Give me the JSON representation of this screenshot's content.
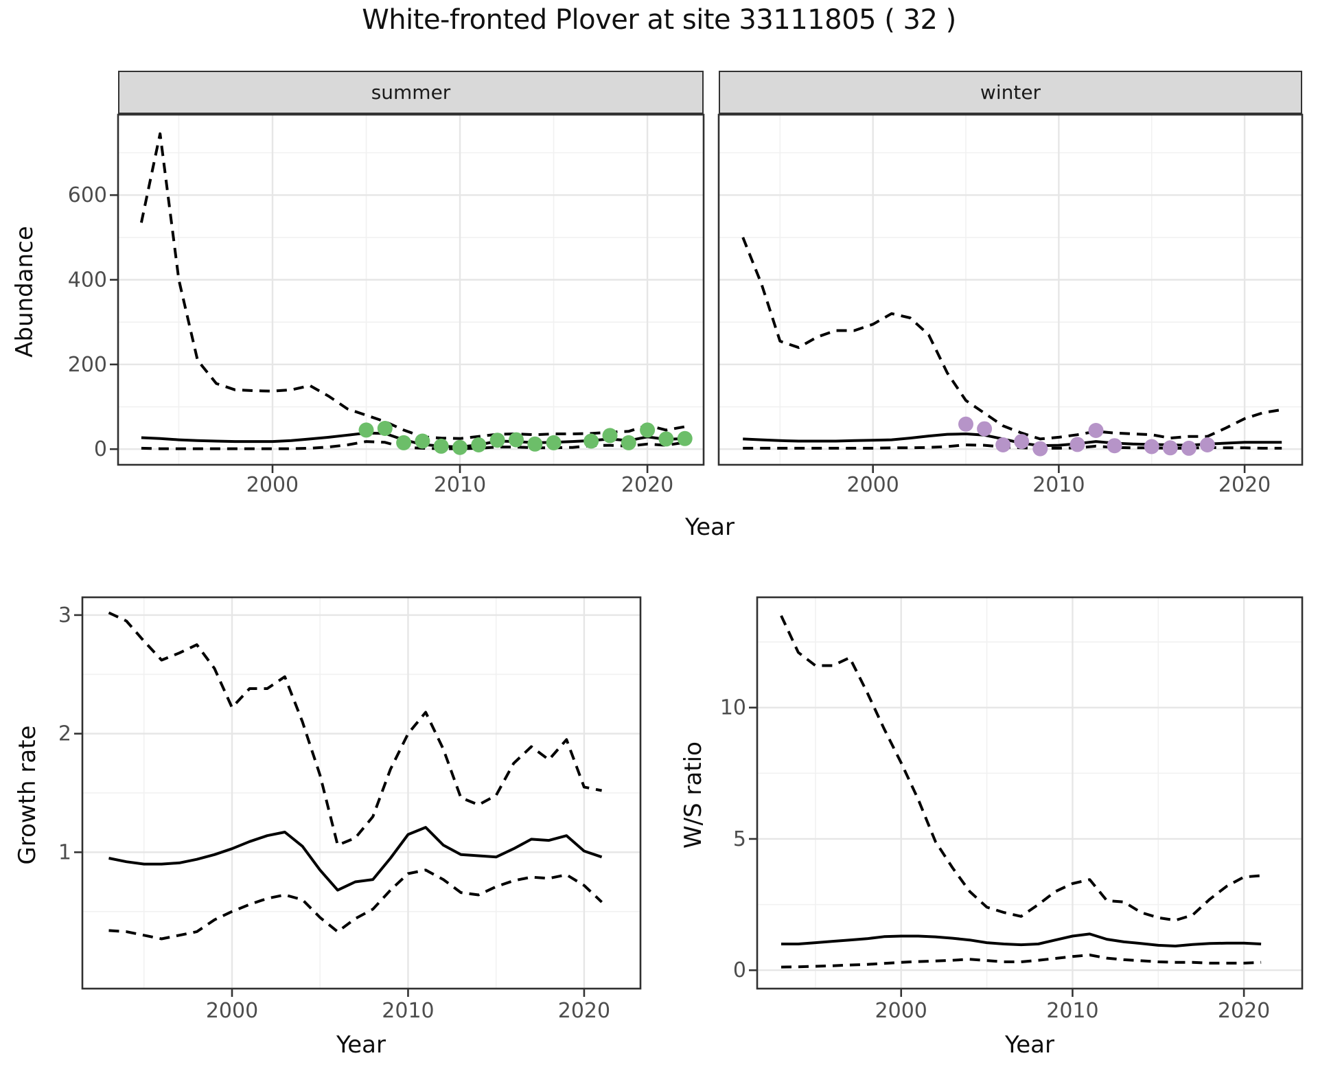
{
  "title": "White-fronted Plover at site 33111805 ( 32 )",
  "colors": {
    "summer_point": "#6cbe69",
    "winter_point": "#b694c8",
    "line": "#000000",
    "grid_major": "#e6e6e6",
    "grid_minor": "#f1f1f1",
    "panel_border": "#303030",
    "strip_bg": "#d9d9d9",
    "axis_text": "#4d4d4d"
  },
  "chart_data": [
    {
      "type": "line",
      "id": "summer-abundance",
      "facet_label": "summer",
      "xlabel": "Year",
      "ylabel": "Abundance",
      "xlim": [
        1991.76,
        2023.0
      ],
      "ylim": [
        -37,
        790
      ],
      "x_ticks": [
        2000,
        2010,
        2020
      ],
      "x_tick_labels": [
        "2000",
        "2010",
        "2020"
      ],
      "x_minor": [
        1995,
        2005,
        2015
      ],
      "y_ticks": [
        0,
        200,
        400,
        600
      ],
      "y_tick_labels": [
        "0",
        "200",
        "400",
        "600"
      ],
      "y_minor": [
        100,
        300,
        500,
        700
      ],
      "grid": true,
      "x": [
        1993,
        1994,
        1995,
        1996,
        1997,
        1998,
        1999,
        2000,
        2001,
        2002,
        2003,
        2004,
        2005,
        2006,
        2007,
        2008,
        2009,
        2010,
        2011,
        2012,
        2013,
        2014,
        2015,
        2016,
        2017,
        2018,
        2019,
        2020,
        2021,
        2022
      ],
      "series": [
        {
          "name": "upper 95% CI",
          "style": "dashed",
          "y": [
            535,
            745,
            400,
            210,
            155,
            140,
            138,
            137,
            140,
            150,
            125,
            95,
            80,
            65,
            45,
            29,
            26,
            25,
            30,
            35,
            36,
            34,
            36,
            36,
            37,
            40,
            42,
            56,
            45,
            53
          ]
        },
        {
          "name": "modelled abundance",
          "style": "solid",
          "y": [
            27,
            25,
            22,
            20,
            19,
            18,
            18,
            18,
            20,
            24,
            28,
            33,
            38,
            37,
            22,
            11,
            7,
            5,
            10,
            19,
            18,
            15,
            16,
            18,
            20,
            24,
            20,
            29,
            23,
            25
          ]
        },
        {
          "name": "lower 95% CI",
          "style": "dashed",
          "y": [
            2,
            1,
            1,
            1,
            1,
            1,
            1,
            1,
            1,
            2,
            5,
            10,
            18,
            16,
            4,
            2,
            1,
            1,
            2,
            5,
            5,
            3,
            3,
            4,
            8,
            9,
            7,
            12,
            9,
            16
          ]
        }
      ],
      "points": {
        "name": "observed summer counts",
        "color": "#6cbe69",
        "x": [
          2005,
          2006,
          2007,
          2008,
          2009,
          2010,
          2011,
          2012,
          2013,
          2014,
          2015,
          2017,
          2018,
          2019,
          2020,
          2021,
          2022
        ],
        "y": [
          45,
          49,
          15,
          19,
          7,
          4,
          10,
          21,
          22,
          12,
          15,
          19,
          32,
          15,
          45,
          24,
          25
        ]
      }
    },
    {
      "type": "line",
      "id": "winter-abundance",
      "facet_label": "winter",
      "xlabel": "Year",
      "ylabel": "Abundance",
      "xlim": [
        1991.7,
        2023.1
      ],
      "ylim": [
        -37,
        790
      ],
      "x_ticks": [
        2000,
        2010,
        2020
      ],
      "x_tick_labels": [
        "2000",
        "2010",
        "2020"
      ],
      "x_minor": [
        1995,
        2005,
        2015
      ],
      "y_ticks": [
        0,
        200,
        400,
        600
      ],
      "y_tick_labels": [],
      "y_minor": [
        100,
        300,
        500,
        700
      ],
      "grid": true,
      "x": [
        1993,
        1994,
        1995,
        1996,
        1997,
        1998,
        1999,
        2000,
        2001,
        2002,
        2003,
        2004,
        2005,
        2006,
        2007,
        2008,
        2009,
        2010,
        2011,
        2012,
        2013,
        2014,
        2015,
        2016,
        2017,
        2018,
        2019,
        2020,
        2021,
        2022
      ],
      "series": [
        {
          "name": "upper 95% CI",
          "style": "dashed",
          "y": [
            500,
            390,
            255,
            240,
            265,
            280,
            280,
            295,
            320,
            310,
            270,
            180,
            115,
            85,
            55,
            38,
            24,
            28,
            34,
            42,
            38,
            36,
            34,
            26,
            30,
            30,
            50,
            72,
            86,
            93
          ]
        },
        {
          "name": "modelled abundance",
          "style": "solid",
          "y": [
            24,
            22,
            20,
            19,
            19,
            19,
            20,
            21,
            22,
            26,
            31,
            35,
            36,
            33,
            24,
            14,
            8,
            9,
            13,
            18,
            14,
            12,
            11,
            10,
            9,
            12,
            14,
            16,
            16,
            16
          ]
        },
        {
          "name": "lower 95% CI",
          "style": "dashed",
          "y": [
            2,
            2,
            2,
            2,
            2,
            2,
            2,
            2,
            3,
            3,
            4,
            6,
            10,
            9,
            5,
            3,
            2,
            2,
            3,
            7,
            4,
            3,
            3,
            2,
            2,
            4,
            3,
            3,
            2,
            2
          ]
        }
      ],
      "points": {
        "name": "observed winter counts",
        "color": "#b694c8",
        "x": [
          2005,
          2006,
          2007,
          2008,
          2009,
          2011,
          2012,
          2013,
          2015,
          2016,
          2017,
          2018
        ],
        "y": [
          59,
          48,
          10,
          18,
          1,
          11,
          44,
          8,
          6,
          3,
          2,
          10
        ]
      }
    },
    {
      "type": "line",
      "id": "growth-rate",
      "facet_label": "",
      "xlabel": "Year",
      "ylabel": "Growth rate",
      "xlim": [
        1991.5,
        2023.2
      ],
      "ylim": [
        -0.15,
        3.15
      ],
      "x_ticks": [
        2000,
        2010,
        2020
      ],
      "x_tick_labels": [
        "2000",
        "2010",
        "2020"
      ],
      "x_minor": [
        1995,
        2005,
        2015
      ],
      "y_ticks": [
        1,
        2,
        3
      ],
      "y_tick_labels": [
        "1",
        "2",
        "3"
      ],
      "y_minor": [
        0.5,
        1.5,
        2.5
      ],
      "grid": true,
      "x": [
        1993,
        1994,
        1995,
        1996,
        1997,
        1998,
        1999,
        2000,
        2001,
        2002,
        2003,
        2004,
        2005,
        2006,
        2007,
        2008,
        2009,
        2010,
        2011,
        2012,
        2013,
        2014,
        2015,
        2016,
        2017,
        2018,
        2019,
        2020,
        2021
      ],
      "series": [
        {
          "name": "upper 95% CI",
          "style": "dashed",
          "y": [
            3.02,
            2.95,
            2.78,
            2.62,
            2.68,
            2.75,
            2.55,
            2.22,
            2.38,
            2.38,
            2.48,
            2.1,
            1.65,
            1.06,
            1.12,
            1.3,
            1.7,
            2.0,
            2.18,
            1.87,
            1.46,
            1.4,
            1.48,
            1.75,
            1.89,
            1.78,
            1.95,
            1.55,
            1.52
          ]
        },
        {
          "name": "growth rate",
          "style": "solid",
          "y": [
            0.95,
            0.92,
            0.9,
            0.9,
            0.91,
            0.94,
            0.98,
            1.03,
            1.09,
            1.14,
            1.17,
            1.05,
            0.85,
            0.68,
            0.75,
            0.77,
            0.95,
            1.15,
            1.21,
            1.06,
            0.98,
            0.97,
            0.96,
            1.03,
            1.11,
            1.1,
            1.14,
            1.01,
            0.96
          ]
        },
        {
          "name": "lower 95% CI",
          "style": "dashed",
          "y": [
            0.34,
            0.33,
            0.3,
            0.27,
            0.3,
            0.33,
            0.43,
            0.5,
            0.56,
            0.61,
            0.64,
            0.6,
            0.45,
            0.33,
            0.44,
            0.52,
            0.68,
            0.82,
            0.85,
            0.77,
            0.66,
            0.64,
            0.71,
            0.76,
            0.79,
            0.78,
            0.81,
            0.72,
            0.58
          ]
        }
      ],
      "points": null
    },
    {
      "type": "line",
      "id": "ws-ratio",
      "facet_label": "",
      "xlabel": "Year",
      "ylabel": "W/S ratio",
      "xlim": [
        1991.6,
        2023.4
      ],
      "ylim": [
        -0.7,
        14.2
      ],
      "x_ticks": [
        2000,
        2010,
        2020
      ],
      "x_tick_labels": [
        "2000",
        "2010",
        "2020"
      ],
      "x_minor": [
        1995,
        2005,
        2015
      ],
      "y_ticks": [
        0,
        5,
        10
      ],
      "y_tick_labels": [
        "0",
        "5",
        "10"
      ],
      "y_minor": [
        2.5,
        7.5,
        12.5
      ],
      "grid": true,
      "x": [
        1993,
        1994,
        1995,
        1996,
        1997,
        1998,
        1999,
        2000,
        2001,
        2002,
        2003,
        2004,
        2005,
        2006,
        2007,
        2008,
        2009,
        2010,
        2011,
        2012,
        2013,
        2014,
        2015,
        2016,
        2017,
        2018,
        2019,
        2020,
        2021
      ],
      "series": [
        {
          "name": "upper 95% CI",
          "style": "dashed",
          "y": [
            13.5,
            12.1,
            11.6,
            11.6,
            11.9,
            10.6,
            9.2,
            7.9,
            6.5,
            4.9,
            3.9,
            3.0,
            2.4,
            2.2,
            2.05,
            2.5,
            3.0,
            3.3,
            3.45,
            2.65,
            2.6,
            2.2,
            2.0,
            1.9,
            2.1,
            2.7,
            3.2,
            3.55,
            3.6
          ]
        },
        {
          "name": "W/S ratio",
          "style": "solid",
          "y": [
            1.0,
            1.0,
            1.05,
            1.1,
            1.15,
            1.2,
            1.28,
            1.3,
            1.3,
            1.27,
            1.22,
            1.15,
            1.05,
            1.0,
            0.97,
            1.0,
            1.15,
            1.3,
            1.38,
            1.18,
            1.08,
            1.02,
            0.95,
            0.92,
            0.98,
            1.02,
            1.03,
            1.03,
            1.0
          ]
        },
        {
          "name": "lower 95% CI",
          "style": "dashed",
          "y": [
            0.12,
            0.13,
            0.15,
            0.17,
            0.2,
            0.22,
            0.26,
            0.3,
            0.33,
            0.35,
            0.38,
            0.42,
            0.37,
            0.32,
            0.32,
            0.38,
            0.45,
            0.52,
            0.58,
            0.46,
            0.4,
            0.36,
            0.32,
            0.3,
            0.3,
            0.27,
            0.27,
            0.27,
            0.3
          ]
        }
      ],
      "points": null
    }
  ]
}
